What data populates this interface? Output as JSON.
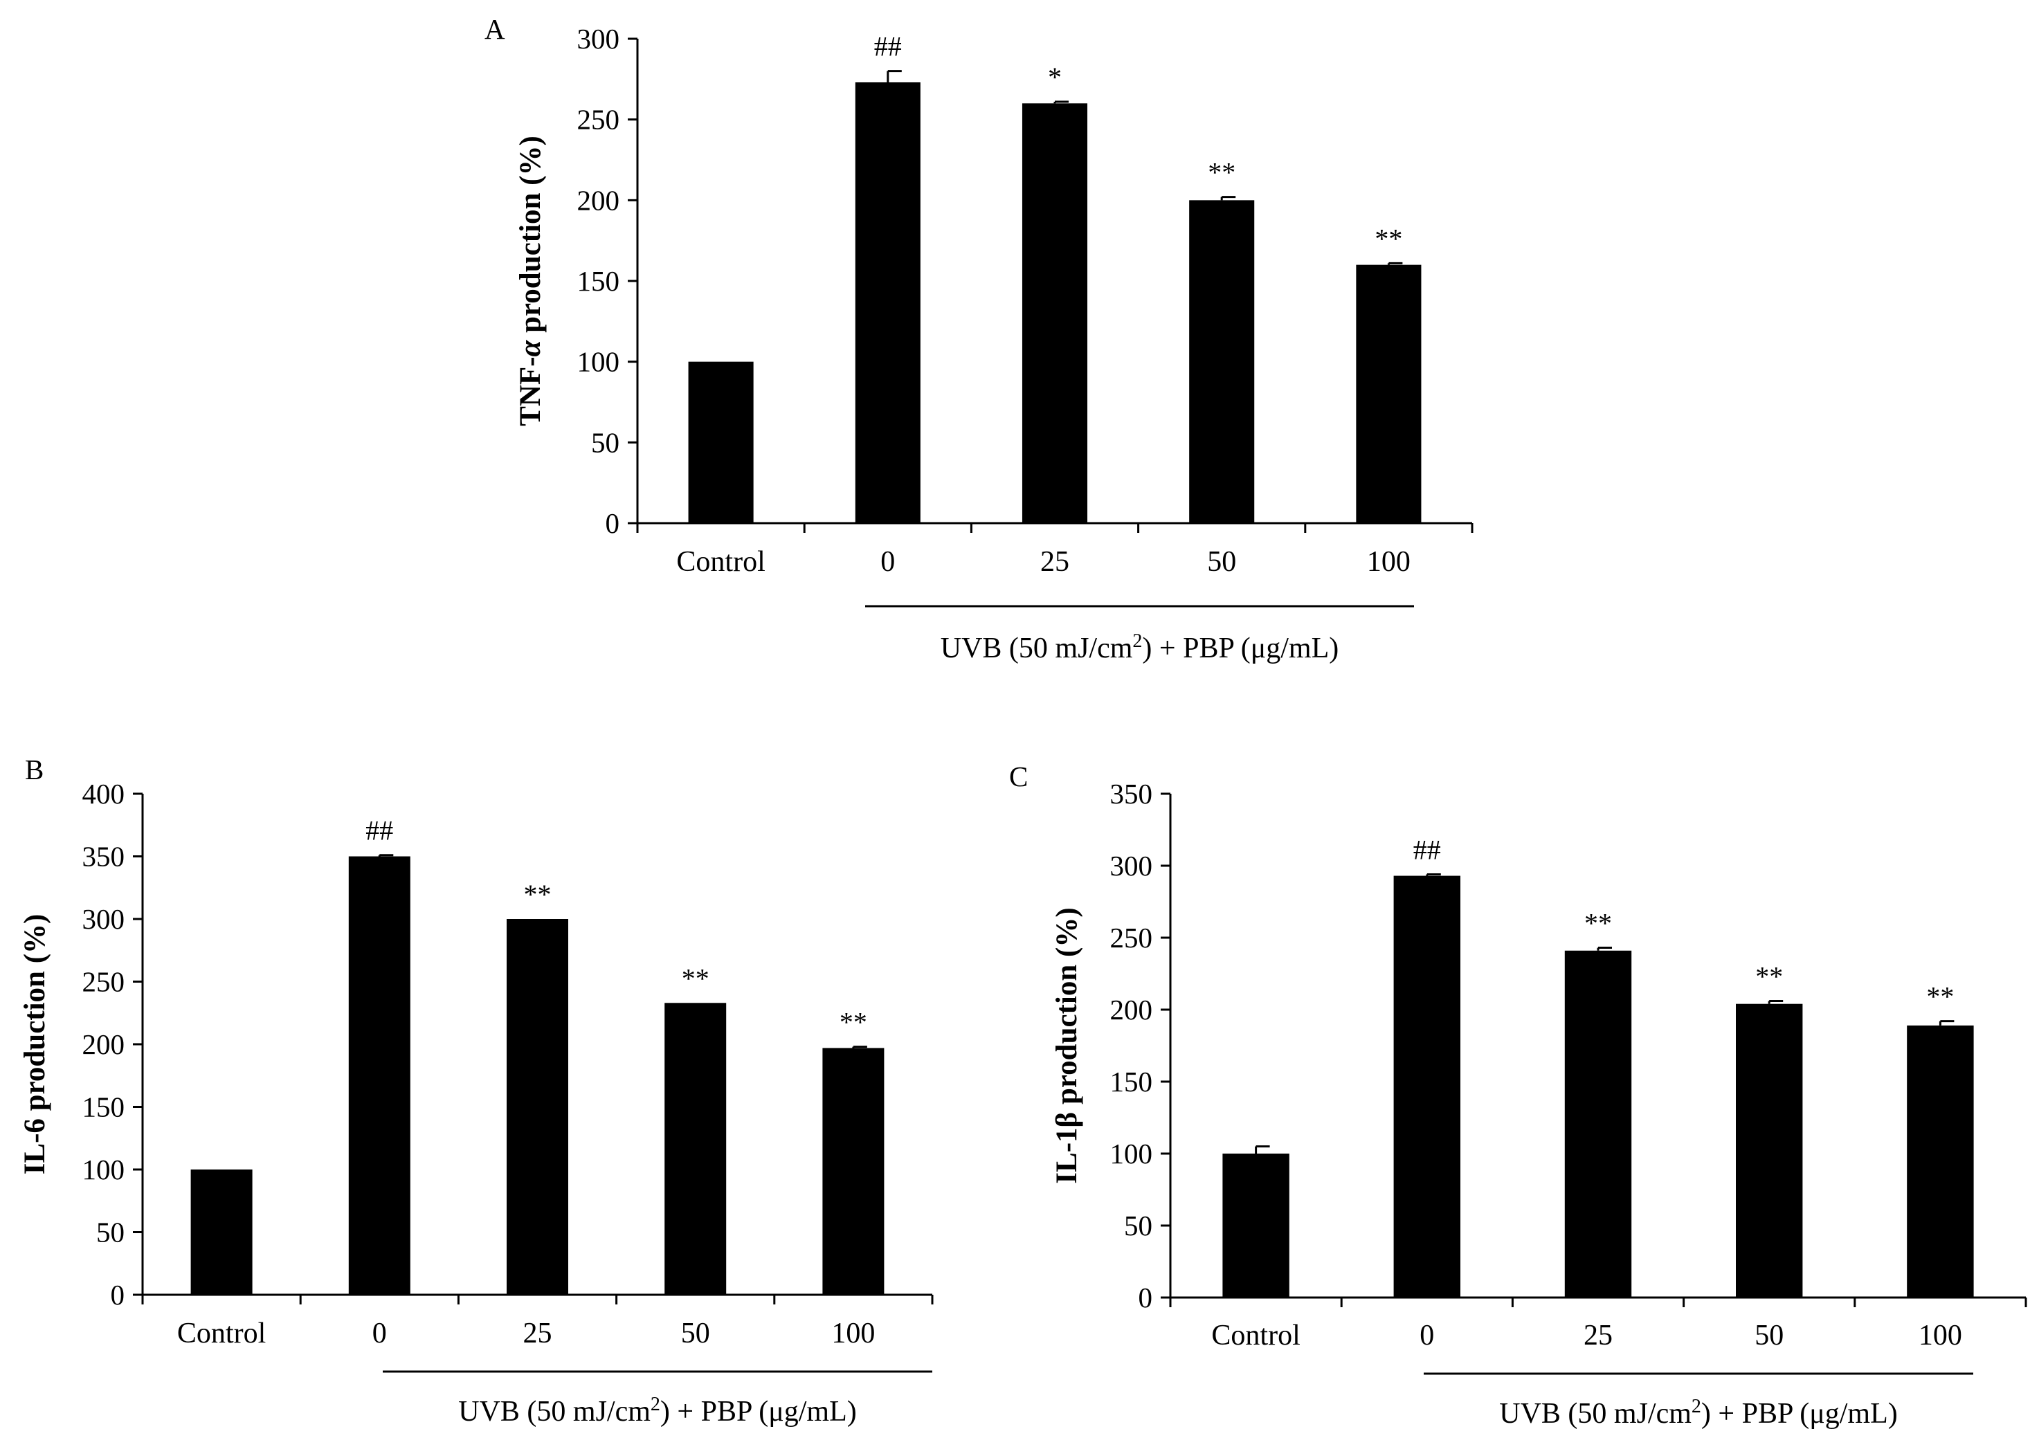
{
  "figure": {
    "note_unit": "%",
    "bar_color": "#000000"
  },
  "chart_data": [
    {
      "type": "bar",
      "panel": "A",
      "title": "",
      "ylabel_prefix": "TNF-",
      "ylabel_greek": "α",
      "ylabel_suffix": " production (%)",
      "xlabel_main": "UVB (50 mJ/cm",
      "xlabel_sup": "2",
      "xlabel_rest": ") + PBP (μg/mL)",
      "categories": [
        "Control",
        "0",
        "25",
        "50",
        "100"
      ],
      "values": [
        100,
        273,
        260,
        200,
        160
      ],
      "errors": [
        0,
        7,
        1,
        2,
        1
      ],
      "significance": [
        "",
        "##",
        "*",
        "**",
        "**"
      ],
      "ylim": [
        0,
        300
      ],
      "yticks": [
        0,
        50,
        100,
        150,
        200,
        250,
        300
      ],
      "grid": false,
      "legend": "none"
    },
    {
      "type": "bar",
      "panel": "B",
      "title": "",
      "ylabel_prefix": "IL-6",
      "ylabel_greek": "",
      "ylabel_suffix": " production (%)",
      "xlabel_main": "UVB (50 mJ/cm",
      "xlabel_sup": "2",
      "xlabel_rest": ") + PBP (μg/mL)",
      "categories": [
        "Control",
        "0",
        "25",
        "50",
        "100"
      ],
      "values": [
        100,
        350,
        300,
        233,
        197
      ],
      "errors": [
        0,
        1,
        0,
        0,
        1
      ],
      "significance": [
        "",
        "##",
        "**",
        "**",
        "**"
      ],
      "ylim": [
        0,
        400
      ],
      "yticks": [
        0,
        50,
        100,
        150,
        200,
        250,
        300,
        350,
        400
      ],
      "grid": false,
      "legend": "none"
    },
    {
      "type": "bar",
      "panel": "C",
      "title": "",
      "ylabel_prefix": "IL-1β",
      "ylabel_greek": "",
      "ylabel_suffix": " production (%)",
      "xlabel_main": "UVB (50 mJ/cm",
      "xlabel_sup": "2",
      "xlabel_rest": ") + PBP (μg/mL)",
      "categories": [
        "Control",
        "0",
        "25",
        "50",
        "100"
      ],
      "values": [
        100,
        293,
        241,
        204,
        189
      ],
      "errors": [
        5,
        1,
        2,
        2,
        3
      ],
      "significance": [
        "",
        "##",
        "**",
        "**",
        "**"
      ],
      "ylim": [
        0,
        350
      ],
      "yticks": [
        0,
        50,
        100,
        150,
        200,
        250,
        300,
        350
      ],
      "grid": false,
      "legend": "none"
    }
  ]
}
